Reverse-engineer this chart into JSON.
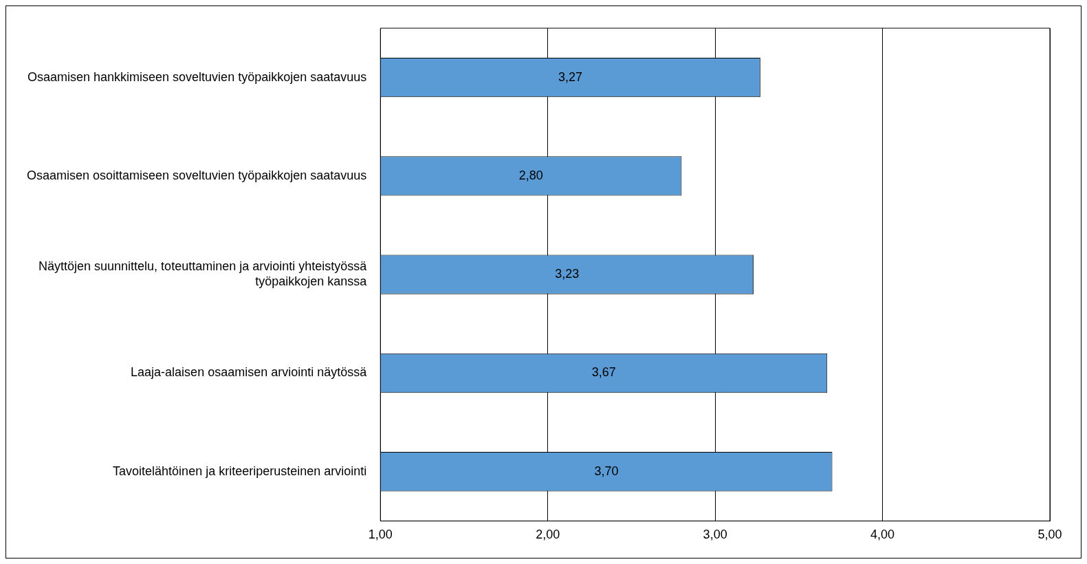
{
  "chart_data": {
    "type": "bar",
    "orientation": "horizontal",
    "categories": [
      "Osaamisen hankkimiseen soveltuvien työpaikkojen saatavuus",
      "Osaamisen osoittamiseen soveltuvien työpaikkojen saatavuus",
      "Näyttöjen suunnittelu, toteuttaminen ja arviointi yhteistyössä työpaikkojen kanssa",
      "Laaja-alaisen osaamisen arviointi näytössä",
      "Tavoitelähtöinen ja kriteeriperusteinen arviointi"
    ],
    "values": [
      3.27,
      2.8,
      3.23,
      3.67,
      3.7
    ],
    "value_labels": [
      "3,27",
      "2,80",
      "3,23",
      "3,67",
      "3,70"
    ],
    "color": "#5b9bd5",
    "xlim": [
      1,
      5
    ],
    "xticks": [
      {
        "value": 1,
        "label": "1,00"
      },
      {
        "value": 2,
        "label": "2,00"
      },
      {
        "value": 3,
        "label": "3,00"
      },
      {
        "value": 4,
        "label": "4,00"
      },
      {
        "value": 5,
        "label": "5,00"
      }
    ],
    "grid": "x",
    "legend": false
  }
}
